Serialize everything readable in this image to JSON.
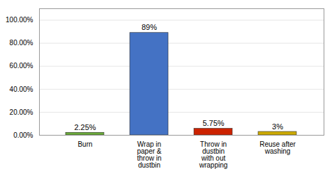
{
  "chart_data": {
    "type": "bar",
    "categories": [
      "Burn",
      "Wrap in\npaper &\nthrow in\ndustbin",
      "Throw in\ndustbin\nwith out\nwrapping",
      "Reuse after\nwashing"
    ],
    "values": [
      2.25,
      89.0,
      5.75,
      3.0
    ],
    "value_labels": [
      "2.25%",
      "89%",
      "5.75%",
      "3%"
    ],
    "colors": [
      "#6aaa3a",
      "#4472c4",
      "#cc2200",
      "#ccaa00"
    ],
    "ylim": [
      0,
      110
    ],
    "yticks": [
      {
        "value": 0,
        "label": "0.00%"
      },
      {
        "value": 20,
        "label": "20.00%"
      },
      {
        "value": 40,
        "label": "40.00%"
      },
      {
        "value": 60,
        "label": "60.00%"
      },
      {
        "value": 80,
        "label": "80.00%"
      },
      {
        "value": 100,
        "label": "100.00%"
      }
    ],
    "grid": true,
    "data_labels": true
  }
}
